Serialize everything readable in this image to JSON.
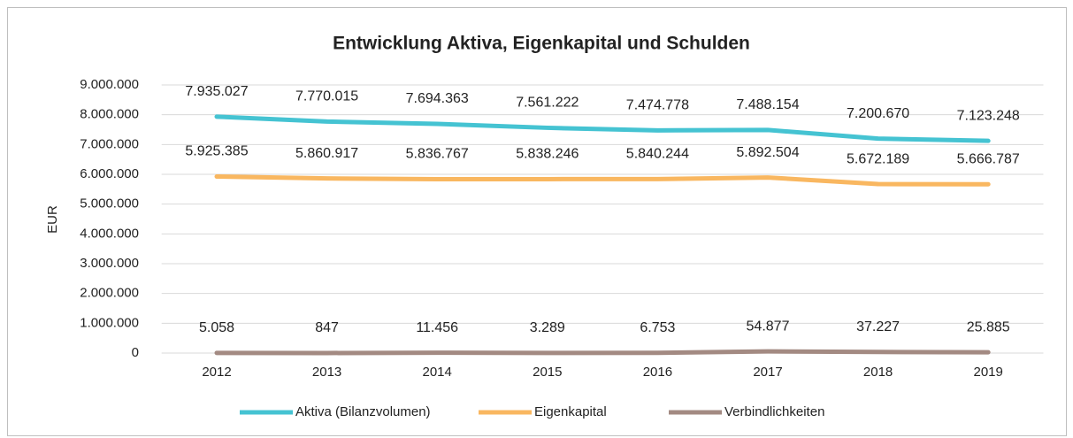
{
  "chart_data": {
    "type": "line",
    "title": "Entwicklung Aktiva, Eigenkapital und Schulden",
    "ylabel": "EUR",
    "categories": [
      "2012",
      "2013",
      "2014",
      "2015",
      "2016",
      "2017",
      "2018",
      "2019"
    ],
    "series": [
      {
        "name": "Aktiva (Bilanzvolumen)",
        "color": "#45c3d2",
        "values": [
          7935027,
          7770015,
          7694363,
          7561222,
          7474778,
          7488154,
          7200670,
          7123248
        ],
        "value_labels": [
          "7.935.027",
          "7.770.015",
          "7.694.363",
          "7.561.222",
          "7.474.778",
          "7.488.154",
          "7.200.670",
          "7.123.248"
        ]
      },
      {
        "name": "Eigenkapital",
        "color": "#f9b760",
        "values": [
          5925385,
          5860917,
          5836767,
          5838246,
          5840244,
          5892504,
          5672189,
          5666787
        ],
        "value_labels": [
          "5.925.385",
          "5.860.917",
          "5.836.767",
          "5.838.246",
          "5.840.244",
          "5.892.504",
          "5.672.189",
          "5.666.787"
        ]
      },
      {
        "name": "Verbindlichkeiten",
        "color": "#a38a82",
        "values": [
          5058,
          847,
          11456,
          3289,
          6753,
          54877,
          37227,
          25885
        ],
        "value_labels": [
          "5.058",
          "847",
          "11.456",
          "3.289",
          "6.753",
          "54.877",
          "37.227",
          "25.885"
        ]
      }
    ],
    "ylim": [
      0,
      9000000
    ],
    "yticks": [
      0,
      {
        "value": 1000000,
        "label": "1.000.000"
      },
      {
        "value": 2000000,
        "label": "2.000.000"
      },
      {
        "value": 3000000,
        "label": "3.000.000"
      },
      {
        "value": 4000000,
        "label": "4.000.000"
      },
      {
        "value": 5000000,
        "label": "5.000.000"
      },
      {
        "value": 6000000,
        "label": "6.000.000"
      },
      {
        "value": 7000000,
        "label": "7.000.000"
      },
      {
        "value": 8000000,
        "label": "8.000.000"
      },
      {
        "value": 9000000,
        "label": "9.000.000"
      }
    ],
    "grid": true,
    "legend": "bottom"
  }
}
